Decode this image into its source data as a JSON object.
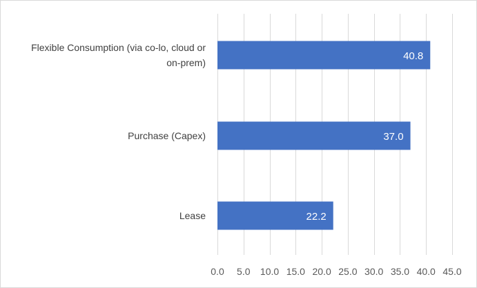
{
  "chart_data": {
    "type": "bar",
    "orientation": "horizontal",
    "categories": [
      [
        "Flexible Consumption (via co-lo, cloud or",
        "on-prem)"
      ],
      [
        "Purchase (Capex)"
      ],
      [
        "Lease"
      ]
    ],
    "values": [
      40.8,
      37.0,
      22.2
    ],
    "data_labels": [
      "40.8",
      "37.0",
      "22.2"
    ],
    "x_ticks": [
      "0.0",
      "5.0",
      "10.0",
      "15.0",
      "20.0",
      "25.0",
      "30.0",
      "35.0",
      "40.0",
      "45.0"
    ],
    "xlim": [
      0,
      45
    ],
    "title": "",
    "xlabel": "",
    "ylabel": "",
    "grid": true,
    "legend": "none",
    "bar_color": "#4472c4"
  }
}
